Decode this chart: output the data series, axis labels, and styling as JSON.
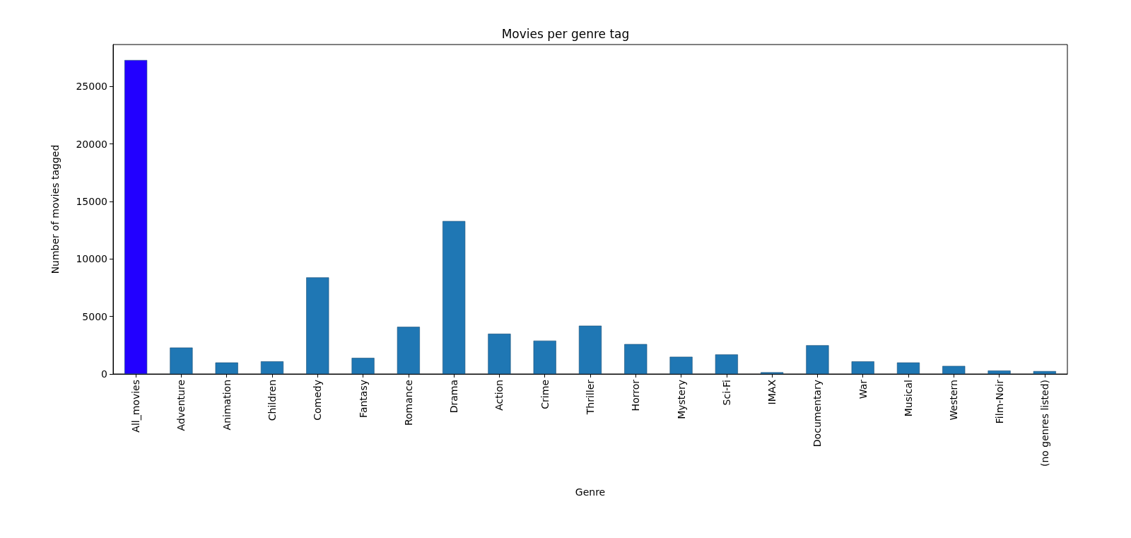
{
  "chart_data": {
    "type": "bar",
    "title": "Movies per genre tag",
    "xlabel": "Genre",
    "ylabel": "Number of movies tagged",
    "categories": [
      "All_movies",
      "Adventure",
      "Animation",
      "Children",
      "Comedy",
      "Fantasy",
      "Romance",
      "Drama",
      "Action",
      "Crime",
      "Thriller",
      "Horror",
      "Mystery",
      "Sci-Fi",
      "IMAX",
      "Documentary",
      "War",
      "Musical",
      "Western",
      "Film-Noir",
      "(no genres listed)"
    ],
    "values": [
      27300,
      2300,
      1000,
      1100,
      8400,
      1400,
      4100,
      13300,
      3500,
      2900,
      4200,
      2600,
      1500,
      1700,
      150,
      2500,
      1100,
      1000,
      700,
      300,
      250
    ],
    "colors": [
      "#2200ff",
      "#1f77b4",
      "#1f77b4",
      "#1f77b4",
      "#1f77b4",
      "#1f77b4",
      "#1f77b4",
      "#1f77b4",
      "#1f77b4",
      "#1f77b4",
      "#1f77b4",
      "#1f77b4",
      "#1f77b4",
      "#1f77b4",
      "#1f77b4",
      "#1f77b4",
      "#1f77b4",
      "#1f77b4",
      "#1f77b4",
      "#1f77b4",
      "#1f77b4"
    ],
    "ylim": [
      0,
      28650
    ],
    "yticks": [
      0,
      5000,
      10000,
      15000,
      20000,
      25000
    ],
    "grid": false
  }
}
